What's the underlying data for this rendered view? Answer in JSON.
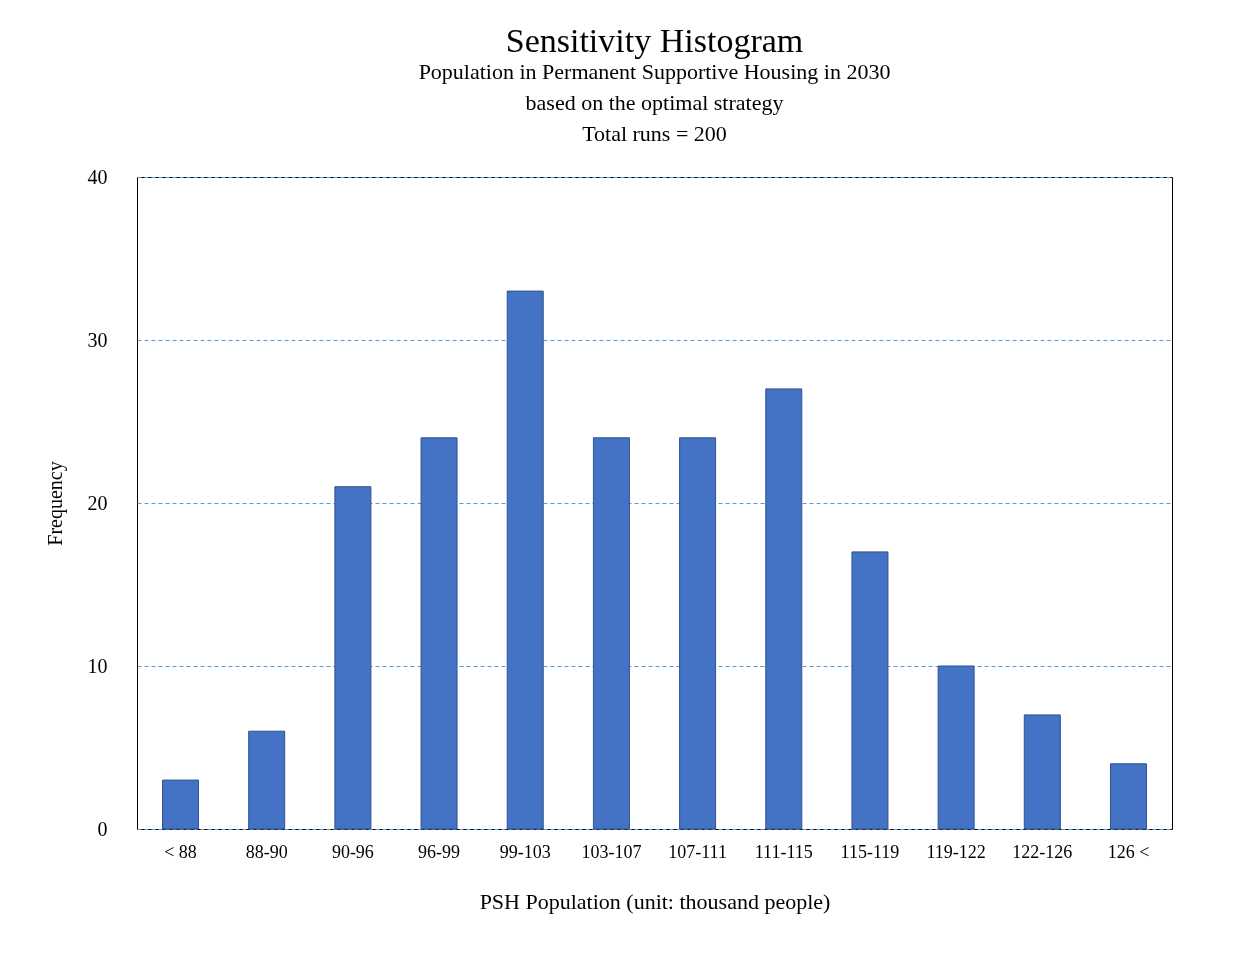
{
  "chart_data": {
    "type": "bar",
    "title": "Sensitivity Histogram",
    "subtitle": "Population in Permanent Supportive Housing in 2030\nbased on the optimal strategy\nTotal runs = 200",
    "xlabel": "PSH Population (unit: thousand people)",
    "ylabel": "Frequency",
    "categories": [
      "< 88",
      "88-90",
      "90-96",
      "96-99",
      "99-103",
      "103-107",
      "107-111",
      "111-115",
      "115-119",
      "119-122",
      "122-126",
      "126 <"
    ],
    "values": [
      3,
      6,
      21,
      24,
      33,
      24,
      24,
      27,
      17,
      10,
      7,
      4
    ],
    "color": "#4472c4",
    "ylim": [
      0,
      40
    ],
    "yticks": [
      0,
      10,
      20,
      30,
      40
    ],
    "grid": "y"
  }
}
